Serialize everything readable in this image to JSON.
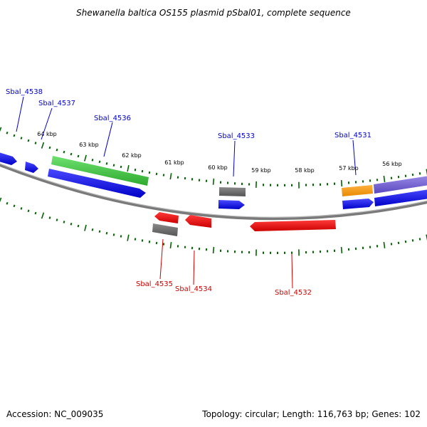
{
  "title": "Shewanella baltica OS155 plasmid pSbal01, complete sequence",
  "footer": {
    "accession": "Accession: NC_009035",
    "summary": "Topology: circular; Length: 116,763 bp; Genes: 102"
  },
  "colors": {
    "forward_label": "#0000cc",
    "reverse_label": "#cc0000",
    "tick": "#006600",
    "backbone": "#888888"
  },
  "scale": {
    "unit": "kbp",
    "labels": [
      {
        "pos_kbp": 64,
        "text": "64 kbp"
      },
      {
        "pos_kbp": 63,
        "text": "63 kbp"
      },
      {
        "pos_kbp": 62,
        "text": "62 kbp"
      },
      {
        "pos_kbp": 61,
        "text": "61 kbp"
      },
      {
        "pos_kbp": 60,
        "text": "60 kbp"
      },
      {
        "pos_kbp": 59,
        "text": "59 kbp"
      },
      {
        "pos_kbp": 58,
        "text": "58 kbp"
      },
      {
        "pos_kbp": 57,
        "text": "57 kbp"
      },
      {
        "pos_kbp": 56,
        "text": "56 kbp"
      }
    ]
  },
  "genes": [
    {
      "name": "Sbal_4538",
      "strand": "forward",
      "color": "#0000ee"
    },
    {
      "name": "Sbal_4537",
      "strand": "forward",
      "color": "#0000ee"
    },
    {
      "name": "Sbal_4536",
      "strand": "forward",
      "color": "#0000ee"
    },
    {
      "name": "Sbal_4533",
      "strand": "forward",
      "color": "#0000ee"
    },
    {
      "name": "Sbal_4531",
      "strand": "forward",
      "color": "#0000ee"
    },
    {
      "name": "Sbal_4535",
      "strand": "reverse",
      "color": "#ee0000"
    },
    {
      "name": "Sbal_4534",
      "strand": "reverse",
      "color": "#ee0000"
    },
    {
      "name": "Sbal_4532",
      "strand": "reverse",
      "color": "#ee0000"
    }
  ]
}
